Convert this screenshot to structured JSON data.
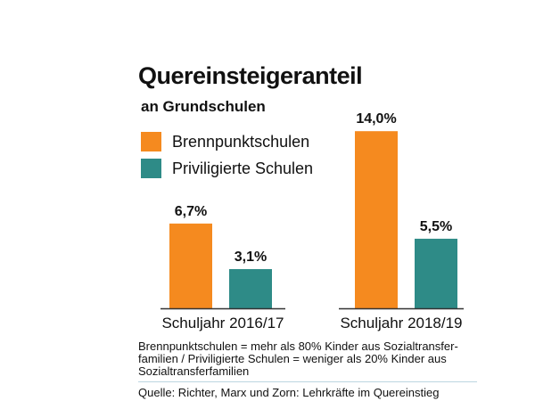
{
  "chart_data": {
    "type": "bar",
    "title": "Quereinsteigeranteil",
    "subtitle": "an Grundschulen",
    "categories": [
      "Schuljahr 2016/17",
      "Schuljahr 2018/19"
    ],
    "series": [
      {
        "name": "Brennpunktschulen",
        "color": "#f58a1f",
        "values": [
          6.7,
          14.0
        ],
        "labels": [
          "6,7%",
          "14,0%"
        ]
      },
      {
        "name": "Priviligierte Schulen",
        "color": "#2e8b87",
        "values": [
          3.1,
          5.5
        ],
        "labels": [
          "3,1%",
          "5,5%"
        ]
      }
    ],
    "ylim": [
      0,
      15
    ]
  },
  "note": "Brennpunktschulen = mehr als 80% Kinder aus Sozialtransfer-familien / Priviligierte Schulen = weniger als 20% Kinder aus Sozialtransferfamilien",
  "source": "Quelle: Richter, Marx und Zorn: Lehrkräfte im Quereinstieg",
  "colors": {
    "axis": "#333333",
    "divider": "#bcd6e0"
  }
}
